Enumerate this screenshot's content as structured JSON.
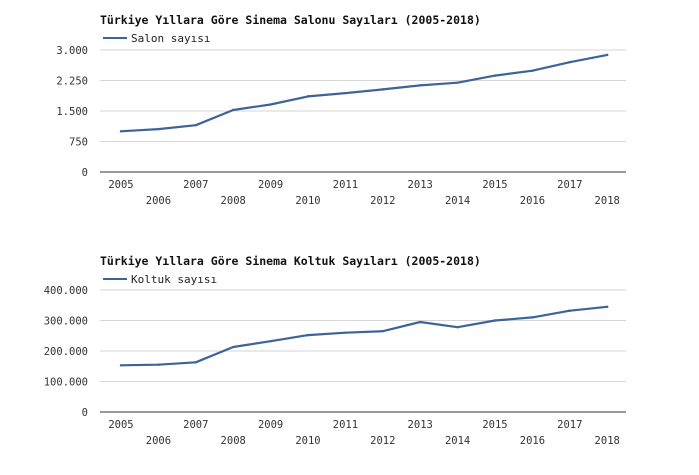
{
  "chart_data": [
    {
      "type": "line",
      "title": "Türkiye Yıllara Göre Sinema Salonu Sayıları (2005-2018)",
      "xlabel": "",
      "ylabel": "",
      "categories": [
        "2005",
        "2006",
        "2007",
        "2008",
        "2009",
        "2010",
        "2011",
        "2012",
        "2013",
        "2014",
        "2015",
        "2016",
        "2017",
        "2018"
      ],
      "series": [
        {
          "name": "Salon sayısı",
          "color": "#3d6498",
          "values": [
            1000,
            1055,
            1150,
            1525,
            1660,
            1860,
            1940,
            2030,
            2130,
            2195,
            2370,
            2490,
            2700,
            2880
          ]
        }
      ],
      "ylim": [
        0,
        3000
      ],
      "yticks": [
        0,
        750,
        1500,
        2250,
        3000
      ],
      "ytick_labels": [
        "0",
        "750",
        "1.500",
        "2.250",
        "3.000"
      ],
      "grid": true,
      "legend_position": "top-left"
    },
    {
      "type": "line",
      "title": "Türkiye Yıllara Göre Sinema Koltuk Sayıları (2005-2018)",
      "xlabel": "",
      "ylabel": "",
      "categories": [
        "2005",
        "2006",
        "2007",
        "2008",
        "2009",
        "2010",
        "2011",
        "2012",
        "2013",
        "2014",
        "2015",
        "2016",
        "2017",
        "2018"
      ],
      "series": [
        {
          "name": "Koltuk sayısı",
          "color": "#3d6498",
          "values": [
            153000,
            155000,
            163000,
            213000,
            232000,
            252000,
            260000,
            265000,
            295000,
            278000,
            300000,
            310000,
            332000,
            345000
          ]
        }
      ],
      "ylim": [
        0,
        400000
      ],
      "yticks": [
        0,
        100000,
        200000,
        300000,
        400000
      ],
      "ytick_labels": [
        "0",
        "100.000",
        "200.000",
        "300.000",
        "400.000"
      ],
      "grid": true,
      "legend_position": "top-left"
    }
  ]
}
